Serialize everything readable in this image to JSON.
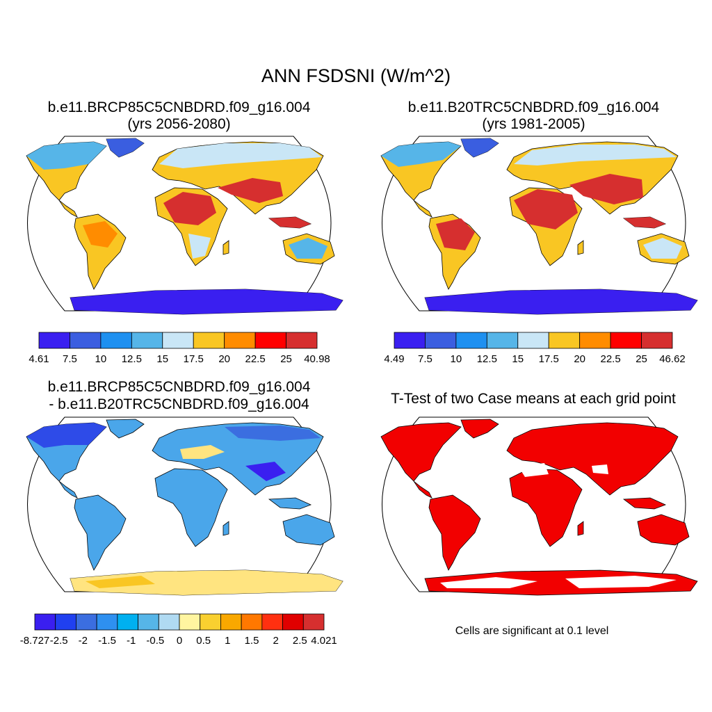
{
  "title": "ANN FSDSNI (W/m^2)",
  "colors": {
    "land_high": "#d62f2f",
    "land_orange": "#ff8c00",
    "land_yellow": "#f9c623",
    "land_light": "#c9e6f6",
    "land_blue": "#56b5e8",
    "antarctica": "#3a1ff0",
    "diff_blue": "#4aa6ea",
    "diff_yellow": "#ffe480",
    "ttest_red": "#f20000",
    "outline": "#000000"
  },
  "panels": [
    {
      "title_line1": "b.e11.BRCP85C5CNBDRD.f09_g16.004",
      "title_line2": "(yrs 2056-2080)",
      "projection": "robinson",
      "colorbar": {
        "ticks": [
          "4.61",
          "7.5",
          "10",
          "12.5",
          "15",
          "17.5",
          "20",
          "22.5",
          "25",
          "40.98"
        ],
        "colors": [
          "#3a1ff0",
          "#3b5ee0",
          "#1e90f0",
          "#56b5e8",
          "#c9e6f6",
          "#f9c623",
          "#ff8c00",
          "#ff0000",
          "#d62f2f"
        ]
      }
    },
    {
      "title_line1": "b.e11.B20TRC5CNBDRD.f09_g16.004",
      "title_line2": "(yrs 1981-2005)",
      "projection": "robinson",
      "colorbar": {
        "ticks": [
          "4.49",
          "7.5",
          "10",
          "12.5",
          "15",
          "17.5",
          "20",
          "22.5",
          "25",
          "46.62"
        ],
        "colors": [
          "#3a1ff0",
          "#3b5ee0",
          "#1e90f0",
          "#56b5e8",
          "#c9e6f6",
          "#f9c623",
          "#ff8c00",
          "#ff0000",
          "#d62f2f"
        ]
      }
    },
    {
      "title_line1": "b.e11.BRCP85C5CNBDRD.f09_g16.004",
      "title_line2": "- b.e11.B20TRC5CNBDRD.f09_g16.004",
      "projection": "robinson",
      "colorbar": {
        "ticks": [
          "-8.727",
          "-2.5",
          "-2",
          "-1.5",
          "-1",
          "-0.5",
          "0",
          "0.5",
          "1",
          "1.5",
          "2",
          "2.5",
          "4.021"
        ],
        "colors": [
          "#3a1ff0",
          "#2040f0",
          "#3b6ee0",
          "#2e90f0",
          "#00b0f0",
          "#56b5e8",
          "#b0daf2",
          "#fff5a0",
          "#f9d030",
          "#f9a800",
          "#ff7800",
          "#ff3010",
          "#e00000",
          "#d62f2f"
        ]
      }
    },
    {
      "title_line1": "T-Test of two Case means at each grid point",
      "note": "Cells are significant at 0.1 level",
      "projection": "robinson"
    }
  ]
}
